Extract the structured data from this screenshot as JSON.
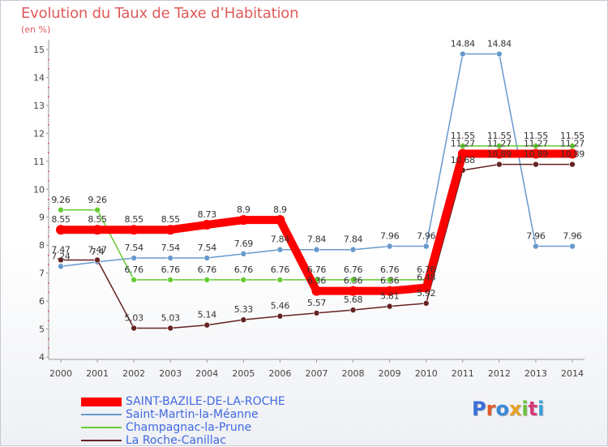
{
  "title": "Evolution du Taux de Taxe d’Habitation",
  "subtitle": "(en %)",
  "logo": "Proxiti",
  "chart_data": {
    "type": "line",
    "title": "Evolution du Taux de Taxe d’Habitation",
    "ylabel": "(en %)",
    "xlabel": "",
    "x": [
      "2000",
      "2001",
      "2002",
      "2003",
      "2004",
      "2005",
      "2006",
      "2007",
      "2008",
      "2009",
      "2010",
      "2011",
      "2012",
      "2013",
      "2014"
    ],
    "ylim": [
      4,
      15
    ],
    "yticks": [
      "4",
      "5",
      "6",
      "7",
      "8",
      "9",
      "10",
      "11",
      "12",
      "13",
      "14",
      "15"
    ],
    "grid": false,
    "legend_position": "bottom-left",
    "series": [
      {
        "name": "SAINT-BAZILE-DE-LA-ROCHE",
        "color": "#ff0000",
        "values": [
          8.55,
          8.55,
          8.55,
          8.55,
          8.73,
          8.9,
          8.9,
          6.36,
          6.36,
          6.36,
          6.48,
          11.27,
          11.27,
          11.27,
          11.27
        ],
        "labels": [
          "8.55",
          "8.55",
          "8.55",
          "8.55",
          "8.73",
          "8.9",
          "8.9",
          "6.36",
          "6.36",
          "6.36",
          "6.48",
          "11.27",
          "11.27",
          "11.27",
          "11.27"
        ]
      },
      {
        "name": "Saint-Martin-la-Méanne",
        "color": "#6699cc",
        "values": [
          7.24,
          7.4,
          7.54,
          7.54,
          7.54,
          7.69,
          7.84,
          7.84,
          7.84,
          7.96,
          7.96,
          14.84,
          14.84,
          7.96,
          7.96
        ],
        "labels": [
          "7.24",
          "7.4",
          "7.54",
          "7.54",
          "7.54",
          "7.69",
          "7.84",
          "7.84",
          "7.84",
          "7.96",
          "7.96",
          "14.84",
          "14.84",
          "7.96",
          "7.96"
        ]
      },
      {
        "name": "Champagnac-la-Prune",
        "color": "#66cc33",
        "values": [
          9.26,
          9.26,
          6.76,
          6.76,
          6.76,
          6.76,
          6.76,
          6.76,
          6.76,
          6.76,
          6.76,
          11.55,
          11.55,
          11.55,
          11.55
        ],
        "labels": [
          "9.26",
          "9.26",
          "6.76",
          "6.76",
          "6.76",
          "6.76",
          "6.76",
          "6.76",
          "6.76",
          "6.76",
          "6.76",
          "11.55",
          "11.55",
          "11.55",
          "11.55"
        ]
      },
      {
        "name": "La Roche-Canillac",
        "color": "#662222",
        "values": [
          7.47,
          7.47,
          5.03,
          5.03,
          5.14,
          5.33,
          5.46,
          5.57,
          5.68,
          5.81,
          5.92,
          10.68,
          10.89,
          10.89,
          10.89
        ],
        "labels": [
          "7.47",
          "7.47",
          "5.03",
          "5.03",
          "5.14",
          "5.33",
          "5.46",
          "5.57",
          "5.68",
          "5.81",
          "5.92",
          "10.68",
          "10.89",
          "10.89",
          "10.89"
        ]
      }
    ]
  }
}
